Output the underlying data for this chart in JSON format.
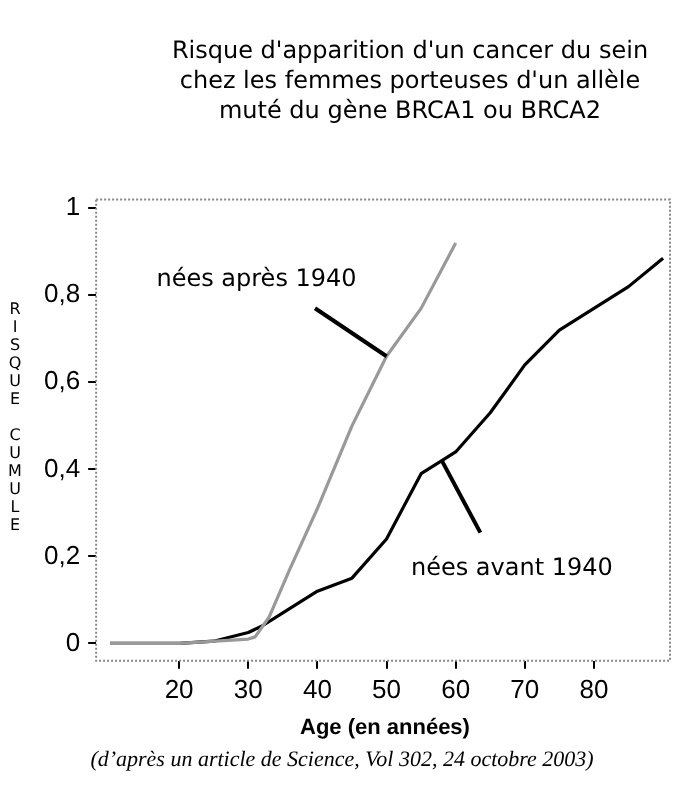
{
  "chart_data": {
    "type": "line",
    "title": "Risque d'apparition d'un cancer du sein\nchez les femmes porteuses d'un allèle\nmuté du gène BRCA1 ou BRCA2",
    "xlabel": "Age (en années)",
    "ylabel": "RISQUE CUMULE",
    "xlim": [
      8,
      91
    ],
    "xticks": [
      20,
      30,
      40,
      50,
      60,
      70,
      80
    ],
    "ylim": [
      -0.04,
      1.02
    ],
    "yticks": [
      {
        "value": 0,
        "label": "0"
      },
      {
        "value": 0.2,
        "label": "0,2"
      },
      {
        "value": 0.4,
        "label": "0,4"
      },
      {
        "value": 0.6,
        "label": "0,6"
      },
      {
        "value": 0.8,
        "label": "0,8"
      },
      {
        "value": 1,
        "label": "1"
      }
    ],
    "series": [
      {
        "color": "#999999",
        "x": [
          10,
          20,
          30,
          31,
          33,
          36,
          40,
          45,
          50,
          55,
          60
        ],
        "values": [
          0,
          0,
          0.01,
          0.015,
          0.06,
          0.17,
          0.31,
          0.5,
          0.66,
          0.77,
          0.92
        ]
      },
      {
        "color": "#000000",
        "x": [
          10,
          20,
          25,
          30,
          32,
          35,
          40,
          45,
          50,
          55,
          58,
          60,
          65,
          70,
          75,
          80,
          85,
          90
        ],
        "values": [
          0,
          0,
          0.005,
          0.025,
          0.04,
          0.07,
          0.12,
          0.15,
          0.24,
          0.39,
          0.42,
          0.44,
          0.53,
          0.64,
          0.72,
          0.77,
          0.82,
          0.885
        ]
      }
    ],
    "grid": false,
    "legend": false,
    "marker": "none",
    "line_style": "solid",
    "annotations": [
      {
        "text": "nées après 1940",
        "x": 50,
        "y": 0.66
      },
      {
        "text": "nées avant 1940",
        "x": 58,
        "y": 0.42
      },
      "(d’après un article de Science, Vol 302, 24 octobre 2003)"
    ]
  }
}
